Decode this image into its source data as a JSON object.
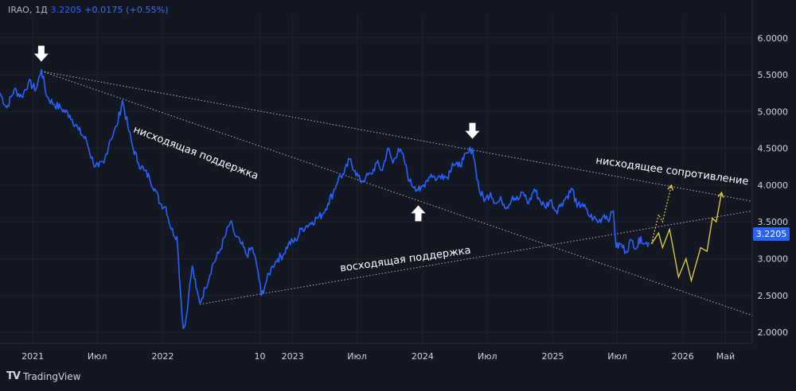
{
  "legend": {
    "symbol": "IRAO, 1Д",
    "last": "3.2205",
    "change": "+0.0175 (+0.55%)"
  },
  "branding": {
    "name": "TradingView"
  },
  "colors": {
    "background": "#131722",
    "price_line": "#2962ff",
    "forecast": "#e8d23a",
    "trendline": "#b2b5be",
    "axis_text": "#d1d4dc",
    "arrow": "#ffffff"
  },
  "chart_data": {
    "type": "line",
    "y_axis": {
      "ticks": [
        "6.0000",
        "5.5000",
        "5.0000",
        "4.5000",
        "4.0000",
        "3.5000",
        "3.0000",
        "2.5000",
        "2.0000"
      ],
      "tick_values": [
        6.0,
        5.5,
        5.0,
        4.5,
        4.0,
        3.5,
        3.0,
        2.5,
        2.0
      ],
      "range": [
        1.85,
        6.3
      ],
      "position": "right"
    },
    "x_axis": {
      "ticks": [
        "2021",
        "Июл",
        "2022",
        "10",
        "2023",
        "Июл",
        "2024",
        "Июл",
        "2025",
        "Июл",
        "2026",
        "Май"
      ],
      "tick_dates": [
        "2021-01-01",
        "2021-07-01",
        "2022-01-01",
        "2022-10-01",
        "2023-01-01",
        "2023-07-01",
        "2024-01-01",
        "2024-07-01",
        "2025-01-01",
        "2025-07-01",
        "2026-01-01",
        "2026-05-01"
      ],
      "range": [
        "2020-10-01",
        "2026-07-15"
      ]
    },
    "grid": true,
    "last_price_label": "3.2205",
    "series": [
      {
        "values": [
          [
            "2020-10-01",
            5.25
          ],
          [
            "2020-10-20",
            5.05
          ],
          [
            "2020-11-10",
            5.3
          ],
          [
            "2020-12-01",
            5.2
          ],
          [
            "2020-12-20",
            5.4
          ],
          [
            "2021-01-10",
            5.3
          ],
          [
            "2021-01-25",
            5.57
          ],
          [
            "2021-02-10",
            5.2
          ],
          [
            "2021-03-01",
            5.1
          ],
          [
            "2021-03-20",
            5.05
          ],
          [
            "2021-04-15",
            4.95
          ],
          [
            "2021-05-10",
            4.75
          ],
          [
            "2021-06-01",
            4.6
          ],
          [
            "2021-06-20",
            4.3
          ],
          [
            "2021-07-05",
            4.25
          ],
          [
            "2021-07-20",
            4.3
          ],
          [
            "2021-08-05",
            4.6
          ],
          [
            "2021-08-25",
            4.8
          ],
          [
            "2021-09-10",
            5.15
          ],
          [
            "2021-09-25",
            4.8
          ],
          [
            "2021-10-10",
            4.5
          ],
          [
            "2021-10-25",
            4.3
          ],
          [
            "2021-11-10",
            4.2
          ],
          [
            "2021-11-25",
            4.1
          ],
          [
            "2021-12-10",
            3.95
          ],
          [
            "2021-12-25",
            3.75
          ],
          [
            "2022-01-10",
            3.7
          ],
          [
            "2022-01-25",
            3.4
          ],
          [
            "2022-02-10",
            3.3
          ],
          [
            "2022-02-20",
            2.55
          ],
          [
            "2022-02-28",
            2.05
          ],
          [
            "2022-03-05",
            2.1
          ],
          [
            "2022-03-15",
            2.5
          ],
          [
            "2022-03-25",
            2.9
          ],
          [
            "2022-04-05",
            2.6
          ],
          [
            "2022-04-15",
            2.4
          ],
          [
            "2022-05-01",
            2.6
          ],
          [
            "2022-05-20",
            2.9
          ],
          [
            "2022-06-10",
            3.1
          ],
          [
            "2022-06-25",
            3.3
          ],
          [
            "2022-07-10",
            3.5
          ],
          [
            "2022-07-25",
            3.3
          ],
          [
            "2022-08-10",
            3.2
          ],
          [
            "2022-08-25",
            3.05
          ],
          [
            "2022-09-10",
            3.15
          ],
          [
            "2022-09-25",
            2.85
          ],
          [
            "2022-10-05",
            2.5
          ],
          [
            "2022-10-20",
            2.7
          ],
          [
            "2022-11-05",
            2.9
          ],
          [
            "2022-11-20",
            3.0
          ],
          [
            "2022-12-05",
            3.05
          ],
          [
            "2022-12-20",
            3.2
          ],
          [
            "2023-01-10",
            3.25
          ],
          [
            "2023-01-25",
            3.4
          ],
          [
            "2023-02-10",
            3.45
          ],
          [
            "2023-02-25",
            3.5
          ],
          [
            "2023-03-10",
            3.55
          ],
          [
            "2023-03-25",
            3.6
          ],
          [
            "2023-04-10",
            3.75
          ],
          [
            "2023-04-25",
            3.9
          ],
          [
            "2023-05-10",
            4.1
          ],
          [
            "2023-05-25",
            4.15
          ],
          [
            "2023-06-10",
            4.35
          ],
          [
            "2023-06-25",
            4.2
          ],
          [
            "2023-07-10",
            4.05
          ],
          [
            "2023-07-25",
            4.1
          ],
          [
            "2023-08-10",
            4.15
          ],
          [
            "2023-08-25",
            4.3
          ],
          [
            "2023-09-10",
            4.2
          ],
          [
            "2023-09-25",
            4.5
          ],
          [
            "2023-10-10",
            4.3
          ],
          [
            "2023-10-25",
            4.5
          ],
          [
            "2023-11-10",
            4.35
          ],
          [
            "2023-11-25",
            4.05
          ],
          [
            "2023-12-10",
            3.98
          ],
          [
            "2023-12-25",
            3.92
          ],
          [
            "2024-01-10",
            4.05
          ],
          [
            "2024-01-25",
            4.15
          ],
          [
            "2024-02-10",
            4.08
          ],
          [
            "2024-02-25",
            4.15
          ],
          [
            "2024-03-10",
            4.1
          ],
          [
            "2024-03-25",
            4.3
          ],
          [
            "2024-04-10",
            4.25
          ],
          [
            "2024-04-25",
            4.35
          ],
          [
            "2024-05-10",
            4.45
          ],
          [
            "2024-05-20",
            4.5
          ],
          [
            "2024-05-30",
            4.2
          ],
          [
            "2024-06-10",
            3.9
          ],
          [
            "2024-06-25",
            3.8
          ],
          [
            "2024-07-10",
            3.9
          ],
          [
            "2024-07-25",
            3.75
          ],
          [
            "2024-08-10",
            3.8
          ],
          [
            "2024-08-25",
            3.7
          ],
          [
            "2024-09-10",
            3.85
          ],
          [
            "2024-09-25",
            3.8
          ],
          [
            "2024-10-10",
            3.9
          ],
          [
            "2024-10-25",
            3.75
          ],
          [
            "2024-11-10",
            3.95
          ],
          [
            "2024-11-25",
            3.8
          ],
          [
            "2024-12-10",
            3.7
          ],
          [
            "2024-12-25",
            3.8
          ],
          [
            "2025-01-10",
            3.65
          ],
          [
            "2025-01-25",
            3.75
          ],
          [
            "2025-02-10",
            3.85
          ],
          [
            "2025-02-25",
            3.95
          ],
          [
            "2025-03-10",
            3.7
          ],
          [
            "2025-03-25",
            3.75
          ],
          [
            "2025-04-10",
            3.6
          ],
          [
            "2025-04-25",
            3.55
          ],
          [
            "2025-05-10",
            3.5
          ],
          [
            "2025-05-25",
            3.6
          ],
          [
            "2025-06-10",
            3.55
          ],
          [
            "2025-06-20",
            3.65
          ],
          [
            "2025-06-28",
            3.15
          ],
          [
            "2025-07-10",
            3.2
          ],
          [
            "2025-07-25",
            3.1
          ],
          [
            "2025-08-10",
            3.25
          ],
          [
            "2025-08-25",
            3.15
          ],
          [
            "2025-09-05",
            3.3
          ],
          [
            "2025-09-15",
            3.2
          ],
          [
            "2025-09-28",
            3.22
          ]
        ]
      }
    ],
    "forecast_path": [
      [
        "2025-10-05",
        3.2
      ],
      [
        "2025-10-25",
        3.35
      ],
      [
        "2025-11-05",
        3.15
      ],
      [
        "2025-11-25",
        3.4
      ],
      [
        "2025-12-20",
        2.75
      ],
      [
        "2026-01-10",
        3.0
      ],
      [
        "2026-01-25",
        2.7
      ],
      [
        "2026-02-20",
        3.15
      ],
      [
        "2026-03-10",
        3.1
      ],
      [
        "2026-03-25",
        3.55
      ],
      [
        "2026-04-05",
        3.5
      ],
      [
        "2026-04-20",
        3.9
      ]
    ],
    "forecast_alt_path": [
      [
        "2025-10-05",
        3.2
      ],
      [
        "2025-10-25",
        3.6
      ],
      [
        "2025-11-05",
        3.5
      ],
      [
        "2025-11-30",
        4.0
      ]
    ],
    "trendlines": [
      {
        "id": "descending-resistance",
        "from": [
          "2021-01-25",
          5.55
        ],
        "to": [
          "2026-07-15",
          3.78
        ]
      },
      {
        "id": "descending-support",
        "from": [
          "2021-01-25",
          5.55
        ],
        "to": [
          "2026-07-15",
          2.23
        ]
      },
      {
        "id": "ascending-support",
        "from": [
          "2022-04-15",
          2.38
        ],
        "to": [
          "2026-07-15",
          3.65
        ]
      }
    ],
    "arrows": [
      {
        "dir": "down",
        "at": [
          "2021-01-25",
          5.55
        ]
      },
      {
        "dir": "down",
        "at": [
          "2024-05-20",
          4.5
        ]
      },
      {
        "dir": "up",
        "at": [
          "2023-12-20",
          3.92
        ]
      }
    ],
    "annotations": [
      {
        "text": "нисходящая поддержка",
        "at": [
          "2022-04-01",
          4.4
        ],
        "angle": 21
      },
      {
        "text": "нисходящее сопротивление",
        "at": [
          "2025-12-01",
          4.15
        ],
        "angle": 8
      },
      {
        "text": "восходящая поддержка",
        "at": [
          "2023-11-15",
          2.95
        ],
        "angle": -8
      }
    ]
  }
}
